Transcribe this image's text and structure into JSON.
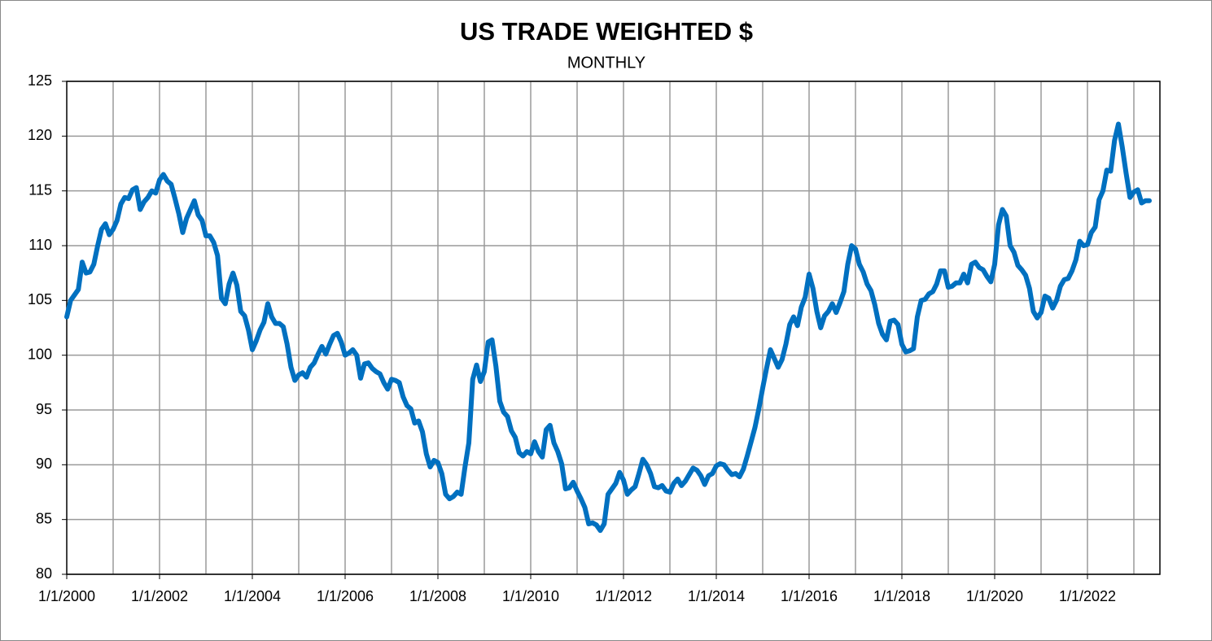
{
  "chart_data": {
    "type": "line",
    "title": "US TRADE WEIGHTED $",
    "subtitle": "MONTHLY",
    "x": [
      "1/1/2000",
      "2/1/2000",
      "3/1/2000",
      "4/1/2000",
      "5/1/2000",
      "6/1/2000",
      "7/1/2000",
      "8/1/2000",
      "9/1/2000",
      "10/1/2000",
      "11/1/2000",
      "12/1/2000",
      "1/1/2001",
      "2/1/2001",
      "3/1/2001",
      "4/1/2001",
      "5/1/2001",
      "6/1/2001",
      "7/1/2001",
      "8/1/2001",
      "9/1/2001",
      "10/1/2001",
      "11/1/2001",
      "12/1/2001",
      "1/1/2002",
      "2/1/2002",
      "3/1/2002",
      "4/1/2002",
      "5/1/2002",
      "6/1/2002",
      "7/1/2002",
      "8/1/2002",
      "9/1/2002",
      "10/1/2002",
      "11/1/2002",
      "12/1/2002",
      "1/1/2003",
      "2/1/2003",
      "3/1/2003",
      "4/1/2003",
      "5/1/2003",
      "6/1/2003",
      "7/1/2003",
      "8/1/2003",
      "9/1/2003",
      "10/1/2003",
      "11/1/2003",
      "12/1/2003",
      "1/1/2004",
      "2/1/2004",
      "3/1/2004",
      "4/1/2004",
      "5/1/2004",
      "6/1/2004",
      "7/1/2004",
      "8/1/2004",
      "9/1/2004",
      "10/1/2004",
      "11/1/2004",
      "12/1/2004",
      "1/1/2005",
      "2/1/2005",
      "3/1/2005",
      "4/1/2005",
      "5/1/2005",
      "6/1/2005",
      "7/1/2005",
      "8/1/2005",
      "9/1/2005",
      "10/1/2005",
      "11/1/2005",
      "12/1/2005",
      "1/1/2006",
      "2/1/2006",
      "3/1/2006",
      "4/1/2006",
      "5/1/2006",
      "6/1/2006",
      "7/1/2006",
      "8/1/2006",
      "9/1/2006",
      "10/1/2006",
      "11/1/2006",
      "12/1/2006",
      "1/1/2007",
      "2/1/2007",
      "3/1/2007",
      "4/1/2007",
      "5/1/2007",
      "6/1/2007",
      "7/1/2007",
      "8/1/2007",
      "9/1/2007",
      "10/1/2007",
      "11/1/2007",
      "12/1/2007",
      "1/1/2008",
      "2/1/2008",
      "3/1/2008",
      "4/1/2008",
      "5/1/2008",
      "6/1/2008",
      "7/1/2008",
      "8/1/2008",
      "9/1/2008",
      "10/1/2008",
      "11/1/2008",
      "12/1/2008",
      "1/1/2009",
      "2/1/2009",
      "3/1/2009",
      "4/1/2009",
      "5/1/2009",
      "6/1/2009",
      "7/1/2009",
      "8/1/2009",
      "9/1/2009",
      "10/1/2009",
      "11/1/2009",
      "12/1/2009",
      "1/1/2010",
      "2/1/2010",
      "3/1/2010",
      "4/1/2010",
      "5/1/2010",
      "6/1/2010",
      "7/1/2010",
      "8/1/2010",
      "9/1/2010",
      "10/1/2010",
      "11/1/2010",
      "12/1/2010",
      "1/1/2011",
      "2/1/2011",
      "3/1/2011",
      "4/1/2011",
      "5/1/2011",
      "6/1/2011",
      "7/1/2011",
      "8/1/2011",
      "9/1/2011",
      "10/1/2011",
      "11/1/2011",
      "12/1/2011",
      "1/1/2012",
      "2/1/2012",
      "3/1/2012",
      "4/1/2012",
      "5/1/2012",
      "6/1/2012",
      "7/1/2012",
      "8/1/2012",
      "9/1/2012",
      "10/1/2012",
      "11/1/2012",
      "12/1/2012",
      "1/1/2013",
      "2/1/2013",
      "3/1/2013",
      "4/1/2013",
      "5/1/2013",
      "6/1/2013",
      "7/1/2013",
      "8/1/2013",
      "9/1/2013",
      "10/1/2013",
      "11/1/2013",
      "12/1/2013",
      "1/1/2014",
      "2/1/2014",
      "3/1/2014",
      "4/1/2014",
      "5/1/2014",
      "6/1/2014",
      "7/1/2014",
      "8/1/2014",
      "9/1/2014",
      "10/1/2014",
      "11/1/2014",
      "12/1/2014",
      "1/1/2015",
      "2/1/2015",
      "3/1/2015",
      "4/1/2015",
      "5/1/2015",
      "6/1/2015",
      "7/1/2015",
      "8/1/2015",
      "9/1/2015",
      "10/1/2015",
      "11/1/2015",
      "12/1/2015",
      "1/1/2016",
      "2/1/2016",
      "3/1/2016",
      "4/1/2016",
      "5/1/2016",
      "6/1/2016",
      "7/1/2016",
      "8/1/2016",
      "9/1/2016",
      "10/1/2016",
      "11/1/2016",
      "12/1/2016",
      "1/1/2017",
      "2/1/2017",
      "3/1/2017",
      "4/1/2017",
      "5/1/2017",
      "6/1/2017",
      "7/1/2017",
      "8/1/2017",
      "9/1/2017",
      "10/1/2017",
      "11/1/2017",
      "12/1/2017",
      "1/1/2018",
      "2/1/2018",
      "3/1/2018",
      "4/1/2018",
      "5/1/2018",
      "6/1/2018",
      "7/1/2018",
      "8/1/2018",
      "9/1/2018",
      "10/1/2018",
      "11/1/2018",
      "12/1/2018",
      "1/1/2019",
      "2/1/2019",
      "3/1/2019",
      "4/1/2019",
      "5/1/2019",
      "6/1/2019",
      "7/1/2019",
      "8/1/2019",
      "9/1/2019",
      "10/1/2019",
      "11/1/2019",
      "12/1/2019",
      "1/1/2020",
      "2/1/2020",
      "3/1/2020",
      "4/1/2020",
      "5/1/2020",
      "6/1/2020",
      "7/1/2020",
      "8/1/2020",
      "9/1/2020",
      "10/1/2020",
      "11/1/2020",
      "12/1/2020",
      "1/1/2021",
      "2/1/2021",
      "3/1/2021",
      "4/1/2021",
      "5/1/2021",
      "6/1/2021",
      "7/1/2021",
      "8/1/2021",
      "9/1/2021",
      "10/1/2021",
      "11/1/2021",
      "12/1/2021",
      "1/1/2022",
      "2/1/2022",
      "3/1/2022",
      "4/1/2022",
      "5/1/2022",
      "6/1/2022",
      "7/1/2022",
      "8/1/2022",
      "9/1/2022",
      "10/1/2022",
      "11/1/2022",
      "12/1/2022",
      "1/1/2023",
      "2/1/2023",
      "3/1/2023",
      "4/1/2023",
      "5/1/2023"
    ],
    "values": [
      103.5,
      105,
      105.5,
      106,
      108.5,
      107.5,
      107.6,
      108.3,
      110,
      111.5,
      112,
      111,
      111.5,
      112.3,
      113.8,
      114.4,
      114.3,
      115.1,
      115.3,
      113.3,
      114,
      114.4,
      115,
      114.8,
      116,
      116.5,
      115.9,
      115.6,
      114.3,
      112.9,
      111.2,
      112.5,
      113.3,
      114.1,
      112.8,
      112.3,
      110.9,
      110.9,
      110.3,
      109.1,
      105.2,
      104.7,
      106.5,
      107.5,
      106.4,
      104,
      103.6,
      102.3,
      100.5,
      101.3,
      102.3,
      103,
      104.7,
      103.5,
      102.9,
      102.9,
      102.6,
      101,
      98.9,
      97.7,
      98.2,
      98.4,
      98,
      98.9,
      99.3,
      100.1,
      100.8,
      100.1,
      101,
      101.8,
      102,
      101.2,
      100,
      100.2,
      100.5,
      100,
      97.9,
      99.2,
      99.3,
      98.8,
      98.5,
      98.3,
      97.5,
      96.9,
      97.8,
      97.7,
      97.5,
      96.2,
      95.4,
      95.1,
      93.8,
      94,
      93,
      91,
      89.8,
      90.4,
      90.2,
      89.2,
      87.3,
      86.9,
      87.1,
      87.5,
      87.3,
      89.8,
      92,
      97.8,
      99.1,
      97.6,
      98.5,
      101.2,
      101.4,
      99,
      95.8,
      94.8,
      94.4,
      93.1,
      92.5,
      91.1,
      90.8,
      91.2,
      91,
      92.1,
      91.2,
      90.7,
      93.2,
      93.6,
      92,
      91.2,
      90.1,
      87.8,
      87.9,
      88.4,
      87.6,
      86.9,
      86.1,
      84.6,
      84.7,
      84.5,
      84,
      84.6,
      87.3,
      87.8,
      88.3,
      89.3,
      88.6,
      87.3,
      87.7,
      88,
      89.2,
      90.5,
      90,
      89.2,
      88,
      87.9,
      88.1,
      87.6,
      87.5,
      88.3,
      88.7,
      88.1,
      88.5,
      89.1,
      89.7,
      89.5,
      89,
      88.2,
      89,
      89.2,
      89.9,
      90.1,
      90,
      89.5,
      89.1,
      89.2,
      88.9,
      89.6,
      90.8,
      92.1,
      93.4,
      95.1,
      97,
      98.8,
      100.5,
      99.7,
      98.9,
      99.6,
      101,
      102.8,
      103.5,
      102.7,
      104.4,
      105.3,
      107.4,
      106.1,
      104,
      102.5,
      103.6,
      104,
      104.7,
      103.9,
      104.8,
      105.8,
      108.3,
      110,
      109.7,
      108.3,
      107.6,
      106.5,
      105.9,
      104.6,
      102.9,
      101.9,
      101.4,
      103.1,
      103.2,
      102.8,
      101,
      100.3,
      100.4,
      100.6,
      103.5,
      105,
      105.1,
      105.6,
      105.8,
      106.5,
      107.7,
      107.7,
      106.2,
      106.3,
      106.6,
      106.6,
      107.4,
      106.6,
      108.3,
      108.5,
      108,
      107.8,
      107.2,
      106.7,
      108.3,
      111.9,
      113.3,
      112.7,
      110,
      109.4,
      108.2,
      107.8,
      107.3,
      106.1,
      104,
      103.4,
      103.9,
      105.4,
      105.2,
      104.3,
      105,
      106.3,
      106.9,
      107,
      107.7,
      108.7,
      110.4,
      110,
      110.1,
      111.2,
      111.7,
      114.2,
      115,
      116.9,
      116.8,
      119.6,
      121.1,
      119,
      116.6,
      114.4,
      114.9,
      115.1,
      113.9,
      114.1,
      114.1
    ],
    "color": "#0070c0",
    "xticks": [
      "1/1/2000",
      "1/1/2002",
      "1/1/2004",
      "1/1/2006",
      "1/1/2008",
      "1/1/2010",
      "1/1/2012",
      "1/1/2014",
      "1/1/2016",
      "1/1/2018",
      "1/1/2020",
      "1/1/2022"
    ],
    "ylim": [
      80,
      125
    ],
    "yticks": [
      80,
      85,
      90,
      95,
      100,
      105,
      110,
      115,
      120,
      125
    ],
    "grid": true
  }
}
